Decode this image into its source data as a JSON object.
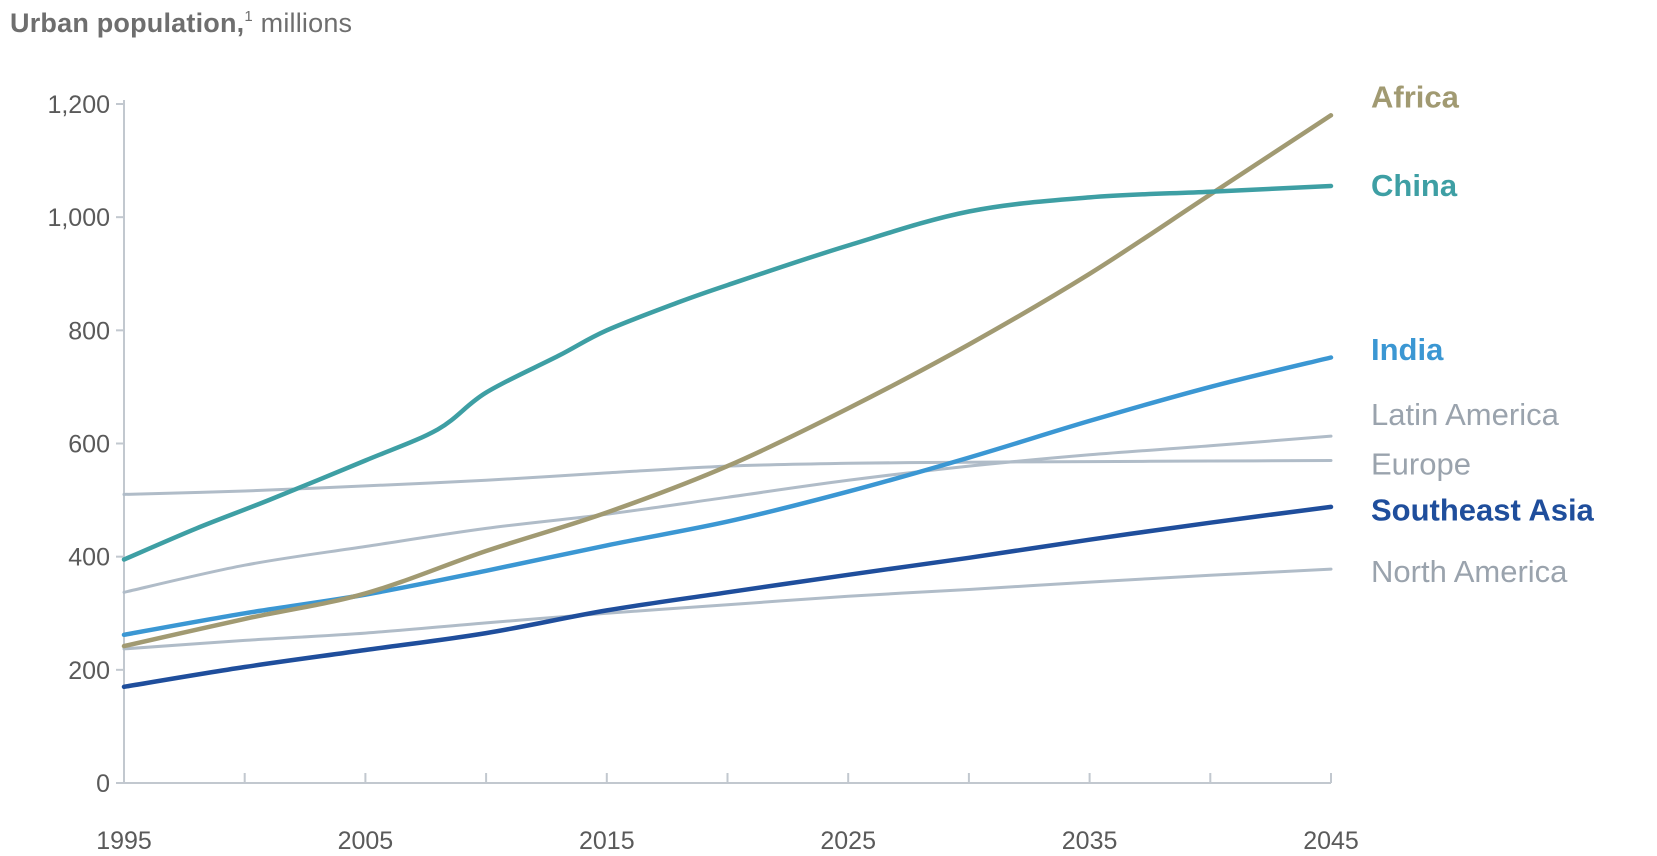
{
  "chart_data": {
    "type": "line",
    "title": {
      "bold": "Urban population,",
      "footnote": "1",
      "rest": " millions"
    },
    "x_ticks": [
      1995,
      2005,
      2015,
      2025,
      2035,
      2045
    ],
    "x_minor_ticks": [
      2000,
      2010,
      2020,
      2030,
      2040
    ],
    "xlim": [
      1995,
      2045
    ],
    "y_ticks": [
      "0",
      "200",
      "400",
      "600",
      "800",
      "1,000",
      "1,200"
    ],
    "y_tick_values": [
      0,
      200,
      400,
      600,
      800,
      1000,
      1200
    ],
    "ylim": [
      0,
      1200
    ],
    "grid": false,
    "series": [
      {
        "name": "Europe",
        "color": "#b0bcc8",
        "weight": "normal",
        "label_color": "#9aa3ad",
        "x": [
          1995,
          2000,
          2005,
          2010,
          2015,
          2020,
          2025,
          2030,
          2035,
          2040,
          2045
        ],
        "y": [
          510,
          516,
          525,
          535,
          548,
          560,
          565,
          567,
          568,
          569,
          570
        ]
      },
      {
        "name": "Latin America",
        "color": "#b0bcc8",
        "weight": "normal",
        "label_color": "#9aa3ad",
        "x": [
          1995,
          2000,
          2005,
          2010,
          2015,
          2020,
          2025,
          2030,
          2035,
          2040,
          2045
        ],
        "y": [
          337,
          385,
          418,
          450,
          475,
          505,
          535,
          560,
          580,
          596,
          613
        ]
      },
      {
        "name": "North America",
        "color": "#b0bcc8",
        "weight": "normal",
        "label_color": "#9aa3ad",
        "x": [
          1995,
          2000,
          2005,
          2010,
          2015,
          2020,
          2025,
          2030,
          2035,
          2040,
          2045
        ],
        "y": [
          237,
          252,
          265,
          283,
          300,
          315,
          330,
          342,
          355,
          367,
          378
        ]
      },
      {
        "name": "Southeast Asia",
        "color": "#1f4e9c",
        "weight": "bold",
        "label_color": "#1f4e9c",
        "x": [
          1995,
          2000,
          2005,
          2010,
          2015,
          2020,
          2025,
          2030,
          2035,
          2040,
          2045
        ],
        "y": [
          170,
          205,
          235,
          265,
          305,
          337,
          368,
          398,
          430,
          460,
          488
        ]
      },
      {
        "name": "India",
        "color": "#3b97d3",
        "weight": "bold",
        "label_color": "#3b97d3",
        "x": [
          1995,
          2000,
          2005,
          2010,
          2015,
          2020,
          2025,
          2030,
          2035,
          2040,
          2045
        ],
        "y": [
          262,
          300,
          333,
          375,
          420,
          462,
          515,
          575,
          640,
          700,
          752
        ]
      },
      {
        "name": "Africa",
        "color": "#a19a72",
        "weight": "bold",
        "label_color": "#a19a72",
        "x": [
          1995,
          2000,
          2005,
          2010,
          2015,
          2020,
          2025,
          2030,
          2035,
          2040,
          2045
        ],
        "y": [
          242,
          290,
          335,
          410,
          478,
          560,
          662,
          775,
          900,
          1040,
          1180
        ]
      },
      {
        "name": "China",
        "color": "#3e9fa4",
        "weight": "bold",
        "label_color": "#3e9fa4",
        "x": [
          1995,
          1998,
          2001,
          2005,
          2008,
          2010,
          2013,
          2015,
          2018,
          2020,
          2025,
          2030,
          2035,
          2040,
          2045
        ],
        "y": [
          395,
          450,
          500,
          570,
          625,
          690,
          755,
          800,
          850,
          880,
          950,
          1010,
          1035,
          1045,
          1055
        ]
      }
    ],
    "labels": [
      {
        "series": "Africa",
        "text": "Africa",
        "at_value": 1213
      },
      {
        "series": "China",
        "text": "China",
        "at_value": 1057
      },
      {
        "series": "India",
        "text": "India",
        "at_value": 767
      },
      {
        "series": "Latin America",
        "text": "Latin America",
        "at_value": 652
      },
      {
        "series": "Europe",
        "text": "Europe",
        "at_value": 565
      },
      {
        "series": "Southeast Asia",
        "text": "Southeast Asia",
        "at_value": 483
      },
      {
        "series": "North America",
        "text": "North America",
        "at_value": 375
      }
    ]
  }
}
